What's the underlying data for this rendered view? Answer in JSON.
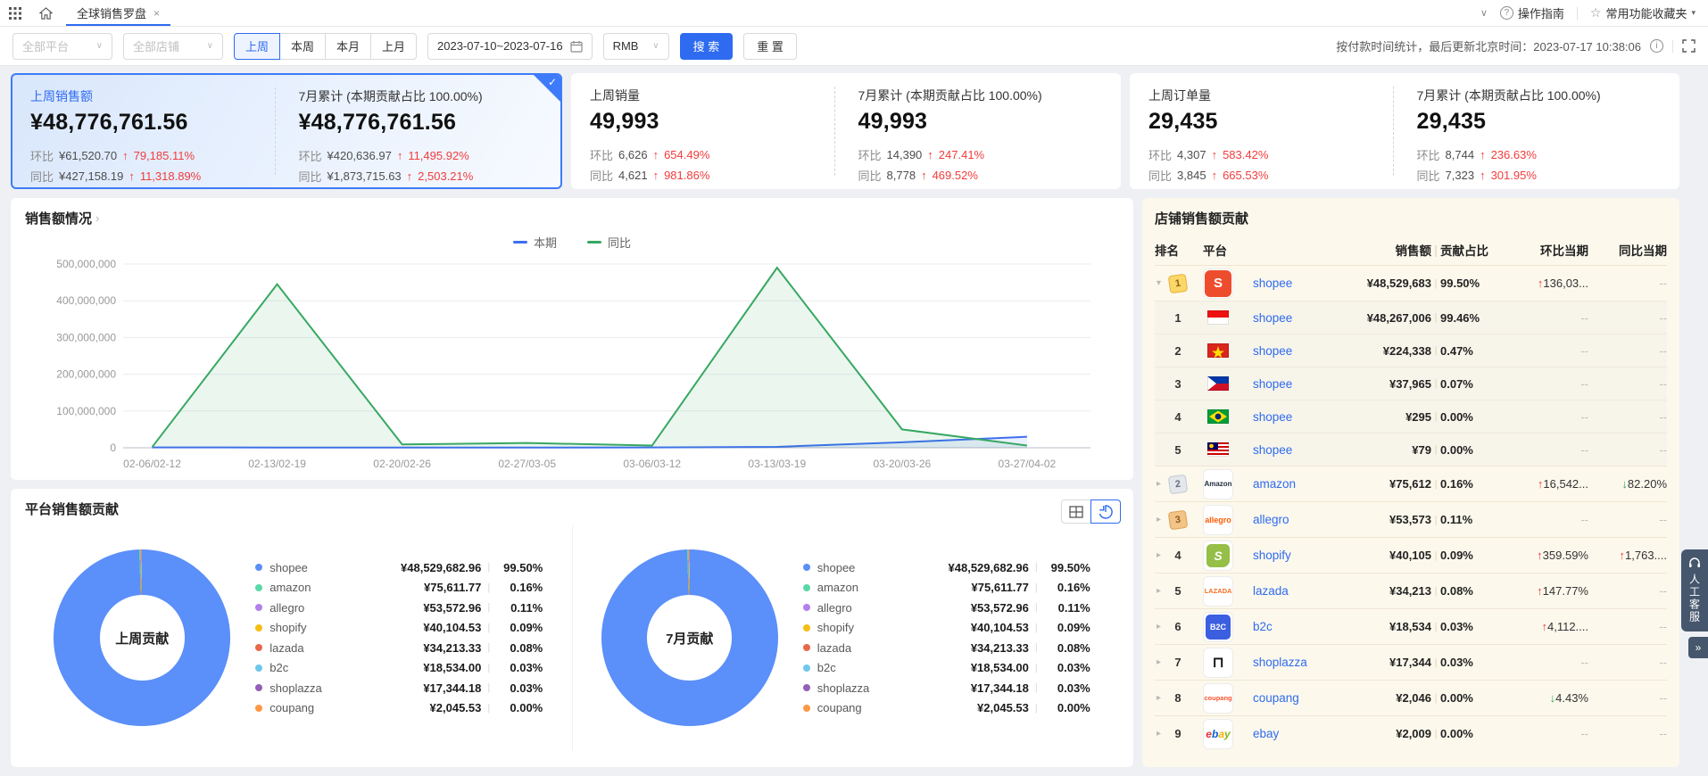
{
  "topbar": {
    "tab": "全球销售罗盘",
    "close": "×",
    "collapse_chevron": "∨",
    "guide_icon_glyph": "?",
    "guide": "操作指南",
    "favorites_star": "☆",
    "favorites": "常用功能收藏夹",
    "favorites_caret": "▾"
  },
  "filters": {
    "platform_placeholder": "全部平台",
    "shop_placeholder": "全部店铺",
    "select_caret": "∨",
    "periods": [
      "上周",
      "本周",
      "本月",
      "上月"
    ],
    "active_period": "上周",
    "date_range": "2023-07-10~2023-07-16",
    "currency": "RMB",
    "search_label": "搜 索",
    "reset_label": "重 置",
    "update_note": "按付款时间统计，最后更新北京时间：2023-07-17 10:38:06",
    "info_icon_glyph": "i"
  },
  "labels": {
    "mom": "环比",
    "yoy": "同比"
  },
  "icons": {
    "arrow_up": "↑",
    "arrow_down": "↓",
    "dash": "--",
    "chevron_expanded": "▾",
    "chevron_collapsed": "▸",
    "logo_glyphs": {
      "shopee": "S",
      "amazon": "Amazon",
      "allegro": "allegro",
      "shopify": "S",
      "lazada": "LAZADA",
      "b2c": "B2C",
      "shoplazza": "⊓",
      "coupang": "coupang",
      "ebay": "ebay"
    }
  },
  "kpi_cards": [
    {
      "selected": true,
      "left": {
        "title": "上周销售额",
        "value": "¥48,776,761.56",
        "mom_amount": "¥61,520.70",
        "mom_pct": "79,185.11%",
        "mom_dir": "up",
        "yoy_amount": "¥427,158.19",
        "yoy_pct": "11,318.89%",
        "yoy_dir": "up"
      },
      "right": {
        "title": "7月累计 (本期贡献占比 100.00%)",
        "value": "¥48,776,761.56",
        "mom_amount": "¥420,636.97",
        "mom_pct": "11,495.92%",
        "mom_dir": "up",
        "yoy_amount": "¥1,873,715.63",
        "yoy_pct": "2,503.21%",
        "yoy_dir": "up"
      }
    },
    {
      "selected": false,
      "left": {
        "title": "上周销量",
        "value": "49,993",
        "mom_amount": "6,626",
        "mom_pct": "654.49%",
        "mom_dir": "up",
        "yoy_amount": "4,621",
        "yoy_pct": "981.86%",
        "yoy_dir": "up"
      },
      "right": {
        "title": "7月累计 (本期贡献占比 100.00%)",
        "value": "49,993",
        "mom_amount": "14,390",
        "mom_pct": "247.41%",
        "mom_dir": "up",
        "yoy_amount": "8,778",
        "yoy_pct": "469.52%",
        "yoy_dir": "up"
      }
    },
    {
      "selected": false,
      "left": {
        "title": "上周订单量",
        "value": "29,435",
        "mom_amount": "4,307",
        "mom_pct": "583.42%",
        "mom_dir": "up",
        "yoy_amount": "3,845",
        "yoy_pct": "665.53%",
        "yoy_dir": "up"
      },
      "right": {
        "title": "7月累计 (本期贡献占比 100.00%)",
        "value": "29,435",
        "mom_amount": "8,744",
        "mom_pct": "236.63%",
        "mom_dir": "up",
        "yoy_amount": "7,323",
        "yoy_pct": "301.95%",
        "yoy_dir": "up"
      }
    }
  ],
  "sales_chart": {
    "title": "销售额情况",
    "title_chevron": "›"
  },
  "platform_contribution": {
    "title": "平台销售额贡献",
    "donut_centers": [
      "上周贡献",
      "7月贡献"
    ],
    "legend": [
      {
        "name": "shopee",
        "value": "¥48,529,682.96",
        "pct": "99.50%",
        "color": "#5B8FF9"
      },
      {
        "name": "amazon",
        "value": "¥75,611.77",
        "pct": "0.16%",
        "color": "#5AD8A6"
      },
      {
        "name": "allegro",
        "value": "¥53,572.96",
        "pct": "0.11%",
        "color": "#B37FEB"
      },
      {
        "name": "shopify",
        "value": "¥40,104.53",
        "pct": "0.09%",
        "color": "#F6BD16"
      },
      {
        "name": "lazada",
        "value": "¥34,213.33",
        "pct": "0.08%",
        "color": "#E8684A"
      },
      {
        "name": "b2c",
        "value": "¥18,534.00",
        "pct": "0.03%",
        "color": "#6DC8EC"
      },
      {
        "name": "shoplazza",
        "value": "¥17,344.18",
        "pct": "0.03%",
        "color": "#945FB9"
      },
      {
        "name": "coupang",
        "value": "¥2,045.53",
        "pct": "0.00%",
        "color": "#FF9845"
      }
    ]
  },
  "shop_contribution": {
    "title": "店铺销售额贡献",
    "columns": [
      "排名",
      "平台",
      "销售额",
      "贡献占比",
      "环比当期",
      "同比当期"
    ],
    "rows": [
      {
        "rank": "1",
        "badge": "gold",
        "expanded": true,
        "logo": "shopee",
        "platform": "shopee",
        "sales": "¥48,529,683",
        "pct": "99.50%",
        "mom": "136,03...",
        "mom_dir": "up",
        "yoy": "--",
        "yoy_dir": "none",
        "children": [
          {
            "rank": "1",
            "flag": "indonesia",
            "platform": "shopee",
            "sales": "¥48,267,006",
            "pct": "99.46%",
            "mom": "--",
            "yoy": "--"
          },
          {
            "rank": "2",
            "flag": "vietnam",
            "platform": "shopee",
            "sales": "¥224,338",
            "pct": "0.47%",
            "mom": "--",
            "yoy": "--"
          },
          {
            "rank": "3",
            "flag": "philippines",
            "platform": "shopee",
            "sales": "¥37,965",
            "pct": "0.07%",
            "mom": "--",
            "yoy": "--"
          },
          {
            "rank": "4",
            "flag": "brazil",
            "platform": "shopee",
            "sales": "¥295",
            "pct": "0.00%",
            "mom": "--",
            "yoy": "--"
          },
          {
            "rank": "5",
            "flag": "malaysia",
            "platform": "shopee",
            "sales": "¥79",
            "pct": "0.00%",
            "mom": "--",
            "yoy": "--"
          }
        ]
      },
      {
        "rank": "2",
        "badge": "silver",
        "logo": "amazon",
        "platform": "amazon",
        "sales": "¥75,612",
        "pct": "0.16%",
        "mom": "16,542...",
        "mom_dir": "up",
        "yoy": "82.20%",
        "yoy_dir": "down"
      },
      {
        "rank": "3",
        "badge": "bronze",
        "logo": "allegro",
        "platform": "allegro",
        "sales": "¥53,573",
        "pct": "0.11%",
        "mom": "--",
        "mom_dir": "none",
        "yoy": "--",
        "yoy_dir": "none"
      },
      {
        "rank": "4",
        "badge": null,
        "logo": "shopify",
        "platform": "shopify",
        "sales": "¥40,105",
        "pct": "0.09%",
        "mom": "359.59%",
        "mom_dir": "up",
        "yoy": "1,763....",
        "yoy_dir": "up"
      },
      {
        "rank": "5",
        "badge": null,
        "logo": "lazada",
        "platform": "lazada",
        "sales": "¥34,213",
        "pct": "0.08%",
        "mom": "147.77%",
        "mom_dir": "up",
        "yoy": "--",
        "yoy_dir": "none"
      },
      {
        "rank": "6",
        "badge": null,
        "logo": "b2c",
        "platform": "b2c",
        "sales": "¥18,534",
        "pct": "0.03%",
        "mom": "4,112....",
        "mom_dir": "up",
        "yoy": "--",
        "yoy_dir": "none"
      },
      {
        "rank": "7",
        "badge": null,
        "logo": "shoplazza",
        "platform": "shoplazza",
        "sales": "¥17,344",
        "pct": "0.03%",
        "mom": "--",
        "mom_dir": "none",
        "yoy": "--",
        "yoy_dir": "none"
      },
      {
        "rank": "8",
        "badge": null,
        "logo": "coupang",
        "platform": "coupang",
        "sales": "¥2,046",
        "pct": "0.00%",
        "mom": "4.43%",
        "mom_dir": "down",
        "yoy": "--",
        "yoy_dir": "none"
      },
      {
        "rank": "9",
        "badge": null,
        "logo": "ebay",
        "platform": "ebay",
        "sales": "¥2,009",
        "pct": "0.00%",
        "mom": "--",
        "mom_dir": "none",
        "yoy": "--",
        "yoy_dir": "none"
      }
    ]
  },
  "floating": {
    "service": "人工客服",
    "collapse": "»"
  },
  "chart_data": [
    {
      "type": "line",
      "title": "销售额情况",
      "categories": [
        "02-06/02-12",
        "02-13/02-19",
        "02-20/02-26",
        "02-27/03-05",
        "03-06/03-12",
        "03-13/03-19",
        "03-20/03-26",
        "03-27/04-02"
      ],
      "series": [
        {
          "name": "本期",
          "color": "#3D6EF2",
          "values": [
            1000000,
            600000,
            600000,
            600000,
            800000,
            2500000,
            15000000,
            30000000
          ]
        },
        {
          "name": "同比",
          "color": "#37A862",
          "values": [
            2000000,
            445000000,
            9000000,
            13000000,
            6000000,
            490000000,
            50000000,
            6000000
          ]
        }
      ],
      "ylim": [
        0,
        500000000
      ],
      "yticks": [
        "500,000,000",
        "400,000,000",
        "300,000,000",
        "200,000,000",
        "100,000,000",
        "0"
      ],
      "legend_position": "top-center",
      "grid": "horizontal"
    },
    {
      "type": "pie",
      "title": "平台销售额贡献",
      "labels": [
        "shopee",
        "amazon",
        "allegro",
        "shopify",
        "lazada",
        "b2c",
        "shoplazza",
        "coupang"
      ],
      "values": [
        99.5,
        0.16,
        0.11,
        0.09,
        0.08,
        0.03,
        0.03,
        0.004
      ],
      "amounts": [
        "¥48,529,682.96",
        "¥75,611.77",
        "¥53,572.96",
        "¥40,104.53",
        "¥34,213.33",
        "¥18,534.00",
        "¥17,344.18",
        "¥2,045.53"
      ],
      "colors": [
        "#5B8FF9",
        "#5AD8A6",
        "#B37FEB",
        "#F6BD16",
        "#E8684A",
        "#6DC8EC",
        "#945FB9",
        "#FF9845"
      ],
      "donut_centers": [
        "上周贡献",
        "7月贡献"
      ]
    }
  ]
}
